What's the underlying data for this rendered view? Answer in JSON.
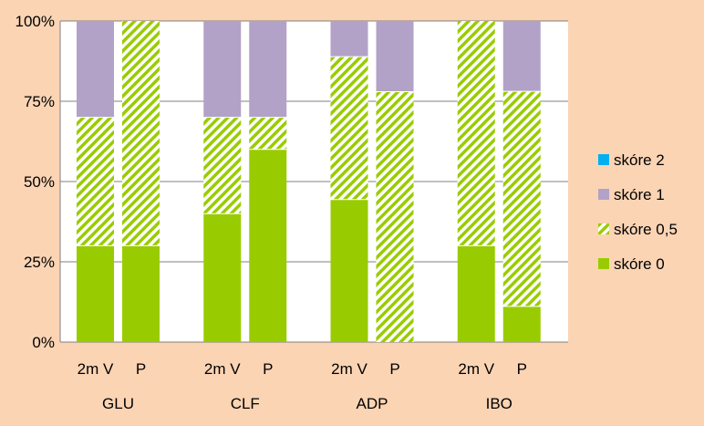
{
  "chart_data": {
    "type": "bar",
    "stacked": "percent",
    "title": "",
    "xlabel": "",
    "ylabel": "",
    "ylim": [
      0,
      100
    ],
    "y_ticks": [
      "0%",
      "25%",
      "50%",
      "75%",
      "100%"
    ],
    "grid": true,
    "legend_position": "right",
    "groups": [
      "GLU",
      "CLF",
      "ADP",
      "IBO"
    ],
    "subcategories": [
      "2m V",
      "P"
    ],
    "categories": [
      "2m V",
      "P",
      "2m V",
      "P",
      "2m V",
      "P",
      "2m V",
      "P"
    ],
    "series": [
      {
        "name": "skóre 0",
        "color": "#99cc00",
        "pattern": "solid",
        "values": [
          30,
          30,
          40,
          60,
          44.4,
          0,
          30,
          11.1
        ]
      },
      {
        "name": "skóre 0,5",
        "color": "#99cc00",
        "pattern": "diagonal-hatch",
        "values": [
          40,
          70,
          30,
          10,
          44.5,
          78,
          70,
          67
        ]
      },
      {
        "name": "skóre 1",
        "color": "#b3a2c7",
        "pattern": "solid",
        "values": [
          30,
          0,
          30,
          30,
          11.1,
          22,
          0,
          21.9
        ]
      },
      {
        "name": "skóre 2",
        "color": "#00b0f0",
        "pattern": "solid",
        "values": [
          0,
          0,
          0,
          0,
          0,
          0,
          0,
          0
        ]
      }
    ],
    "legend_order": [
      "skóre 2",
      "skóre 1",
      "skóre 0,5",
      "skóre 0"
    ]
  }
}
